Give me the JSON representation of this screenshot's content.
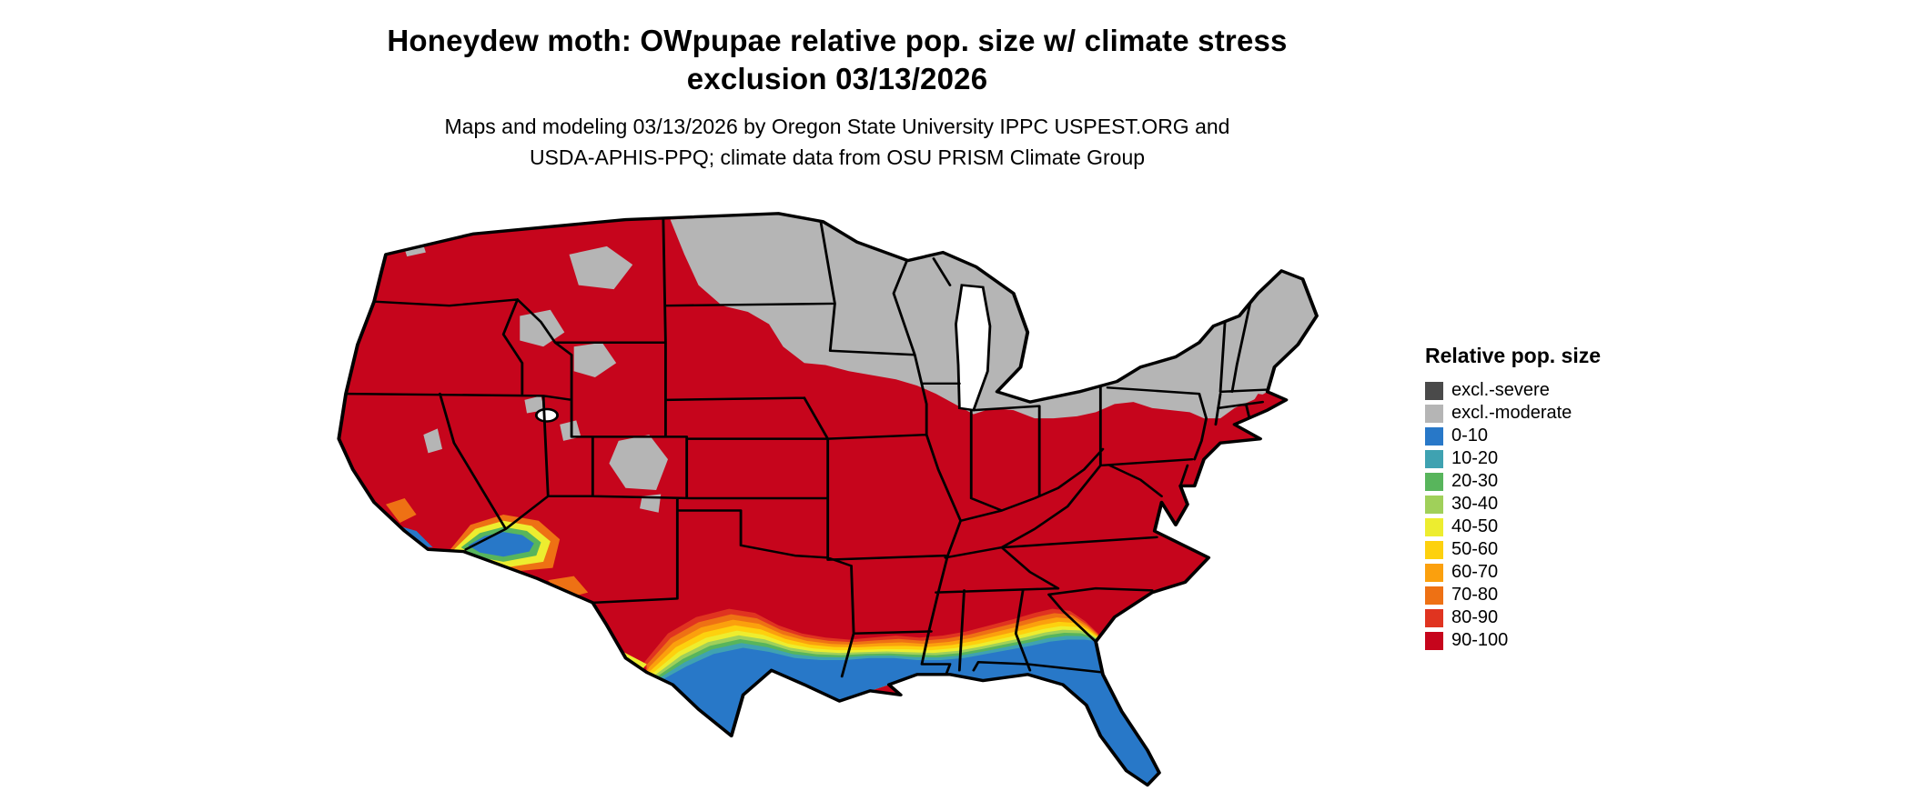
{
  "title": {
    "line1": "Honeydew moth: OWpupae relative pop. size w/ climate stress",
    "line2": "exclusion 03/13/2026"
  },
  "subtitle": {
    "line1": "Maps and modeling 03/13/2026 by Oregon State University IPPC USPEST.ORG and",
    "line2": "USDA-APHIS-PPQ; climate data from OSU PRISM Climate Group"
  },
  "legend": {
    "title": "Relative pop. size",
    "entries": [
      {
        "label": "excl.-severe",
        "key": "excl_severe"
      },
      {
        "label": "excl.-moderate",
        "key": "excl_moderate"
      },
      {
        "label": "0-10",
        "key": "b0"
      },
      {
        "label": "10-20",
        "key": "b10"
      },
      {
        "label": "20-30",
        "key": "b20"
      },
      {
        "label": "30-40",
        "key": "b30"
      },
      {
        "label": "40-50",
        "key": "b40"
      },
      {
        "label": "50-60",
        "key": "b50"
      },
      {
        "label": "60-70",
        "key": "b60"
      },
      {
        "label": "70-80",
        "key": "b70"
      },
      {
        "label": "80-90",
        "key": "b80"
      },
      {
        "label": "90-100",
        "key": "b90"
      }
    ]
  },
  "palette": {
    "excl_severe": "#4a4a4a",
    "excl_moderate": "#b5b5b5",
    "b0": "#2878c8",
    "b10": "#3fa2b1",
    "b20": "#58b55c",
    "b30": "#a0d05a",
    "b40": "#eded2f",
    "b50": "#fdd10e",
    "b60": "#fba00d",
    "b70": "#ee7114",
    "b80": "#e03420",
    "b90": "#c6051c"
  }
}
